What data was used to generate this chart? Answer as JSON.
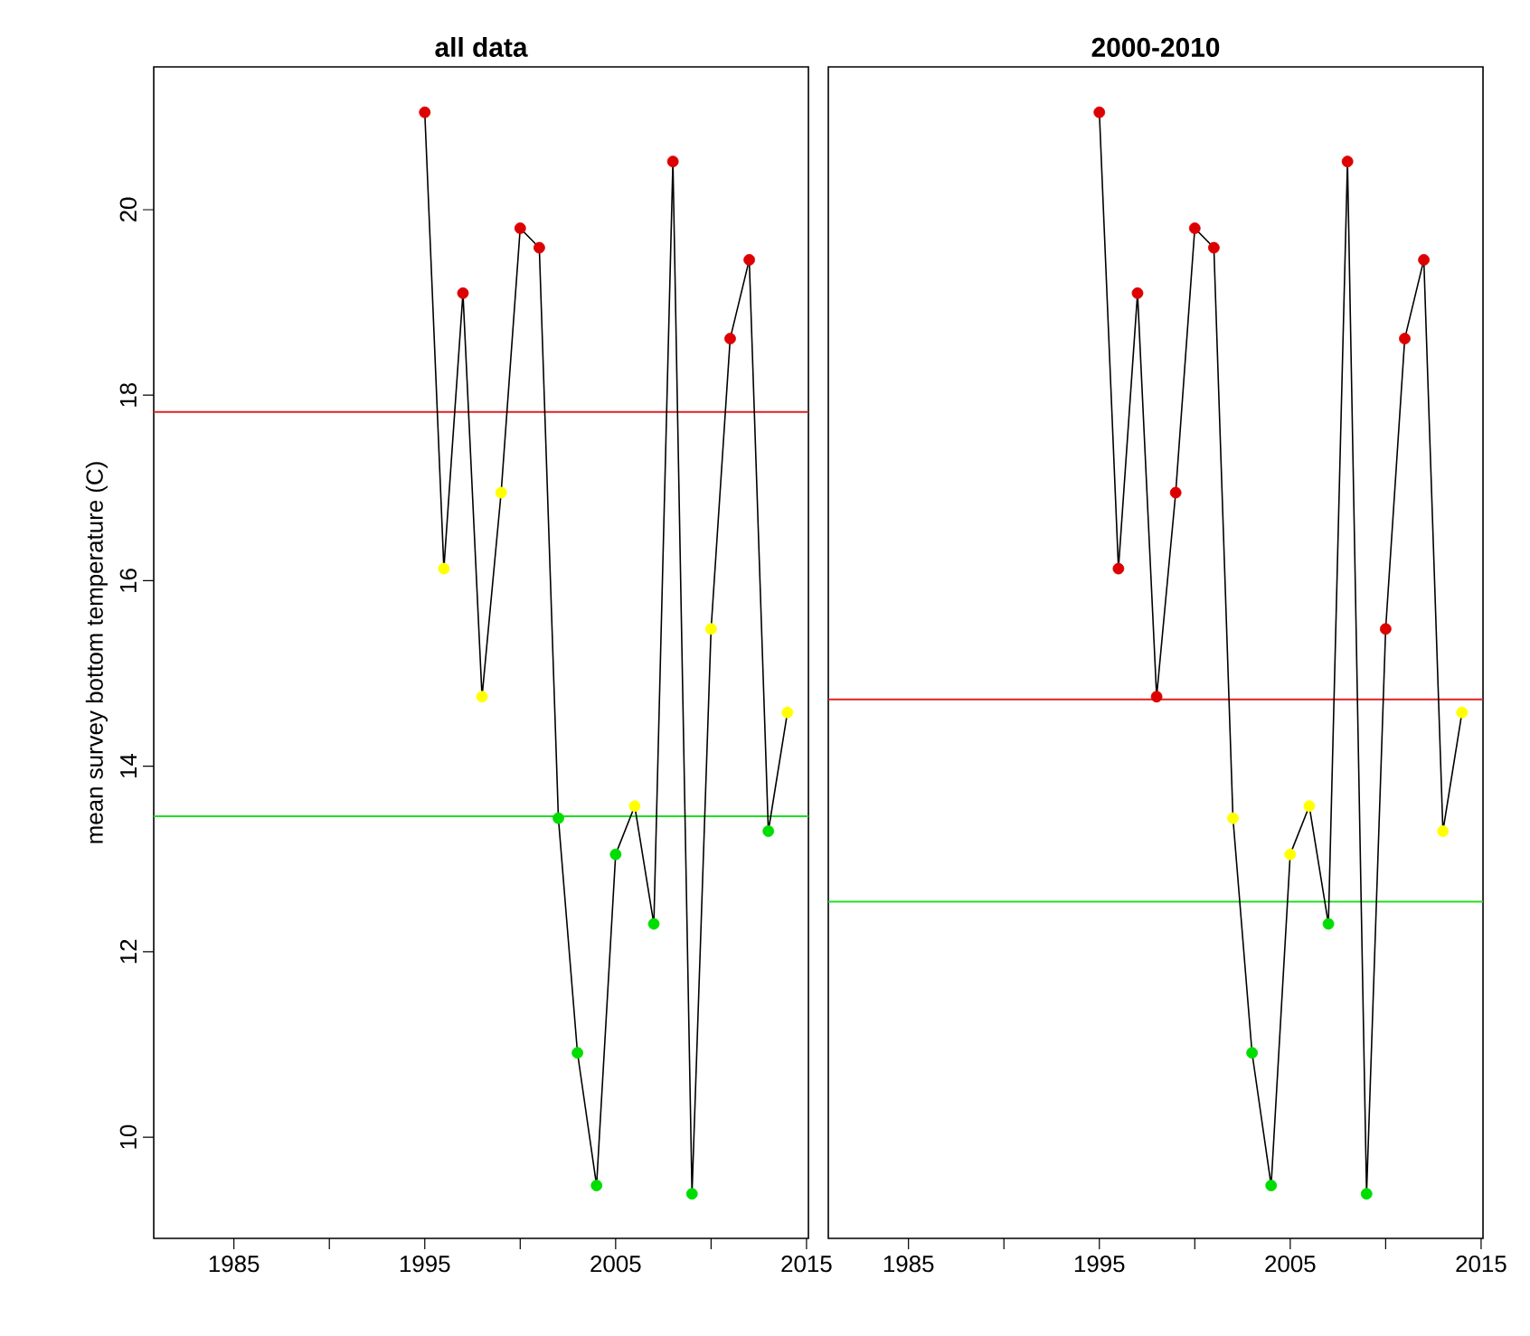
{
  "chart_data": [
    {
      "type": "line",
      "title": "all data",
      "ylabel": "mean survey bottom temperature (C)",
      "marker": "circle",
      "line_style": "solid",
      "x": [
        1995,
        1996,
        1997,
        1998,
        1999,
        2000,
        2001,
        2002,
        2003,
        2004,
        2005,
        2006,
        2007,
        2008,
        2009,
        2010,
        2011,
        2012,
        2013,
        2014
      ],
      "series": [
        {
          "color": "#000000",
          "values": [
            21.05,
            16.13,
            19.1,
            14.75,
            16.95,
            19.8,
            19.59,
            13.44,
            10.91,
            9.48,
            13.05,
            13.57,
            12.3,
            20.52,
            9.39,
            15.48,
            18.61,
            19.46,
            13.3,
            14.58
          ],
          "colors": [
            "#dd0000",
            "#ffff00",
            "#dd0000",
            "#ffff00",
            "#ffff00",
            "#dd0000",
            "#dd0000",
            "#00dd00",
            "#00dd00",
            "#00dd00",
            "#00dd00",
            "#ffff00",
            "#00dd00",
            "#dd0000",
            "#00dd00",
            "#ffff00",
            "#dd0000",
            "#dd0000",
            "#00dd00",
            "#ffff00"
          ]
        }
      ],
      "ref_lines": [
        {
          "axis": "y",
          "value": 17.82,
          "color": "#dd2222"
        },
        {
          "axis": "y",
          "value": 13.46,
          "color": "#22dd22"
        }
      ],
      "xlim": [
        1980.8,
        2015.1
      ],
      "ylim": [
        8.91,
        21.54
      ],
      "xticks": [
        1985,
        {
          "value": 1990,
          "label": null
        },
        1995,
        {
          "value": 2000,
          "label": null
        },
        2005,
        {
          "value": 2010,
          "label": null
        },
        2015
      ],
      "yticks": [
        10,
        12,
        14,
        16,
        18,
        20
      ]
    },
    {
      "type": "line",
      "title": "2000-2010",
      "marker": "circle",
      "line_style": "solid",
      "tick_labels": "x",
      "x": [
        1995,
        1996,
        1997,
        1998,
        1999,
        2000,
        2001,
        2002,
        2003,
        2004,
        2005,
        2006,
        2007,
        2008,
        2009,
        2010,
        2011,
        2012,
        2013,
        2014
      ],
      "series": [
        {
          "color": "#000000",
          "values": [
            21.05,
            16.13,
            19.1,
            14.75,
            16.95,
            19.8,
            19.59,
            13.44,
            10.91,
            9.48,
            13.05,
            13.57,
            12.3,
            20.52,
            9.39,
            15.48,
            18.61,
            19.46,
            13.3,
            14.58
          ],
          "colors": [
            "#dd0000",
            "#dd0000",
            "#dd0000",
            "#dd0000",
            "#dd0000",
            "#dd0000",
            "#dd0000",
            "#ffff00",
            "#00dd00",
            "#00dd00",
            "#ffff00",
            "#ffff00",
            "#00dd00",
            "#dd0000",
            "#00dd00",
            "#dd0000",
            "#dd0000",
            "#dd0000",
            "#ffff00",
            "#ffff00"
          ]
        }
      ],
      "ref_lines": [
        {
          "axis": "y",
          "value": 14.72,
          "color": "#dd2222"
        },
        {
          "axis": "y",
          "value": 12.54,
          "color": "#22dd22"
        }
      ],
      "xlim": [
        1980.8,
        2015.1
      ],
      "ylim": [
        8.91,
        21.54
      ],
      "xticks": [
        1985,
        {
          "value": 1990,
          "label": null
        },
        1995,
        {
          "value": 2000,
          "label": null
        },
        2005,
        {
          "value": 2010,
          "label": null
        },
        2015
      ]
    }
  ]
}
